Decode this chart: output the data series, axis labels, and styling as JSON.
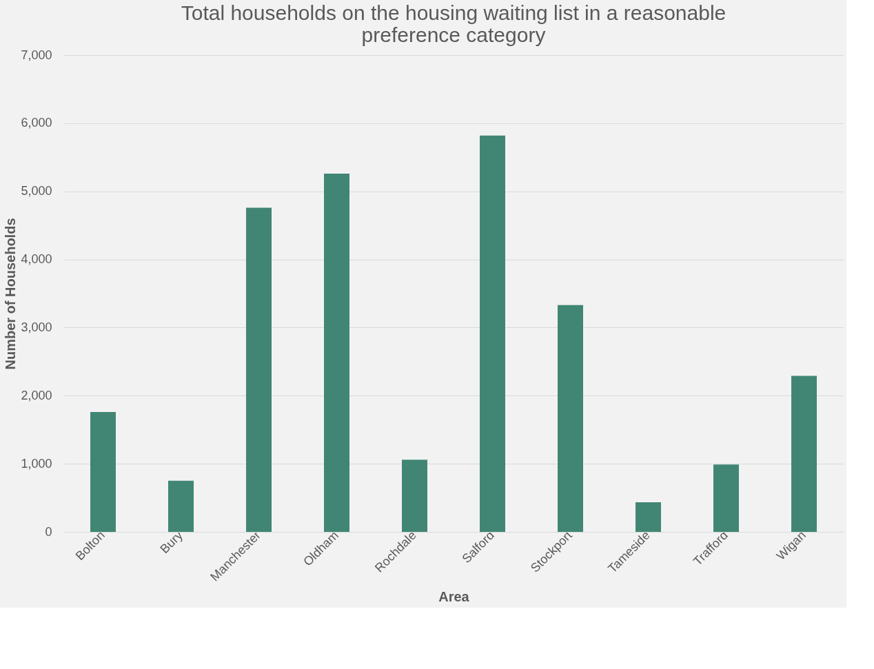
{
  "chart_data": {
    "type": "bar",
    "title": [
      "Total households on the housing waiting list in a reasonable",
      "preference category"
    ],
    "xlabel": "Area",
    "ylabel": "Number of Households",
    "categories": [
      "Bolton",
      "Bury",
      "Manchester",
      "Oldham",
      "Rochdale",
      "Salford",
      "Stockport",
      "Tameside",
      "Trafford",
      "Wigan"
    ],
    "values": [
      1760,
      750,
      4760,
      5260,
      1060,
      5820,
      3330,
      435,
      990,
      2290
    ],
    "color": "#418674",
    "ylim": [
      0,
      7000
    ],
    "yticks": [
      {
        "value": 0,
        "label": "0"
      },
      {
        "value": 1000,
        "label": "1,000"
      },
      {
        "value": 2000,
        "label": "2,000"
      },
      {
        "value": 3000,
        "label": "3,000"
      },
      {
        "value": 4000,
        "label": "4,000"
      },
      {
        "value": 5000,
        "label": "5,000"
      },
      {
        "value": 6000,
        "label": "6,000"
      },
      {
        "value": 7000,
        "label": "7,000"
      }
    ],
    "grid": "y"
  }
}
